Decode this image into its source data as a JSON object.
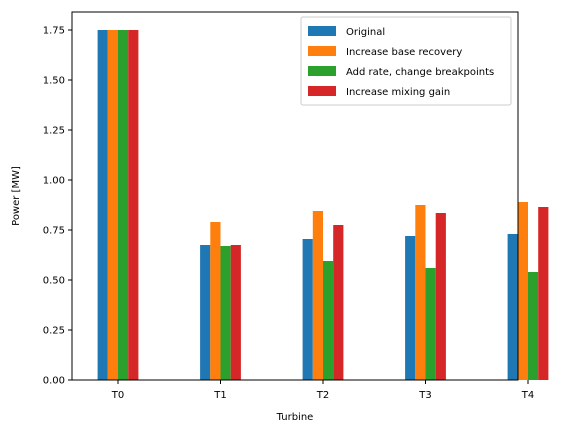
{
  "chart_data": {
    "type": "bar",
    "xlabel": "Turbine",
    "ylabel": "Power [MW]",
    "ylim": [
      0,
      1.84
    ],
    "yticks": [
      "0.00",
      "0.25",
      "0.50",
      "0.75",
      "1.00",
      "1.25",
      "1.50",
      "1.75"
    ],
    "categories": [
      "T0",
      "T1",
      "T2",
      "T3",
      "T4"
    ],
    "legend_position": "top-right",
    "grid": false,
    "series": [
      {
        "name": "Original",
        "color": "#1f77b4",
        "values": [
          1.75,
          0.675,
          0.705,
          0.72,
          0.73
        ]
      },
      {
        "name": "Increase base recovery",
        "color": "#ff7f0e",
        "values": [
          1.75,
          0.79,
          0.845,
          0.875,
          0.89
        ]
      },
      {
        "name": "Add rate, change breakpoints",
        "color": "#2ca02c",
        "values": [
          1.75,
          0.67,
          0.595,
          0.56,
          0.54
        ]
      },
      {
        "name": "Increase mixing gain",
        "color": "#d62728",
        "values": [
          1.75,
          0.675,
          0.775,
          0.835,
          0.865
        ]
      }
    ]
  }
}
